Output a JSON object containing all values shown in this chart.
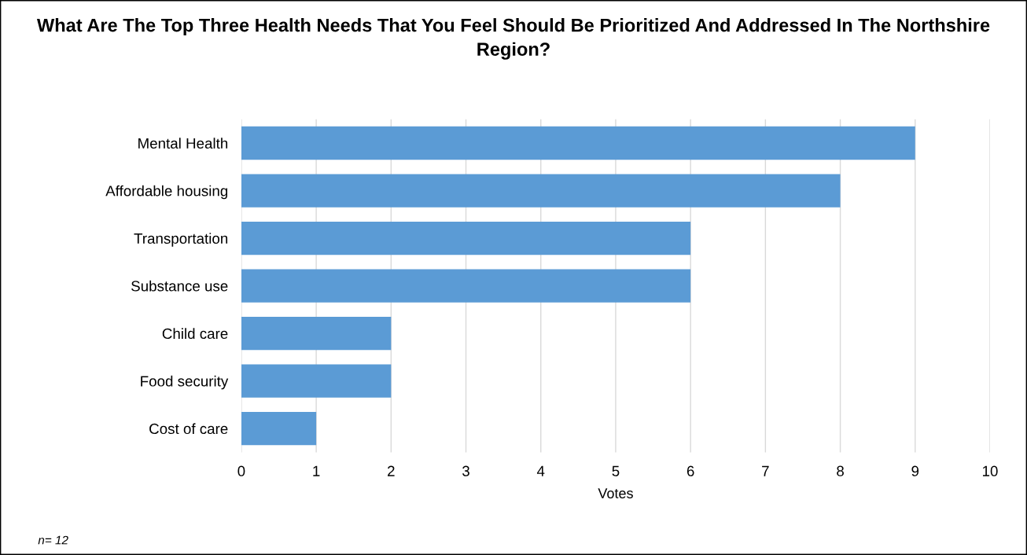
{
  "chart_data": {
    "type": "bar",
    "orientation": "horizontal",
    "title": "What Are The Top Three Health Needs That You Feel Should Be Prioritized And Addressed In The Northshire Region?",
    "xlabel": "Votes",
    "categories": [
      "Mental Health",
      "Affordable housing",
      "Transportation",
      "Substance use",
      "Child care",
      "Food security",
      "Cost of care"
    ],
    "values": [
      9,
      8,
      6,
      6,
      2,
      2,
      1
    ],
    "color": "#5b9bd5",
    "xlim": [
      0,
      10
    ],
    "xticks": [
      0,
      1,
      2,
      3,
      4,
      5,
      6,
      7,
      8,
      9,
      10
    ],
    "grid": "x",
    "annotations": [
      "n= 12"
    ]
  }
}
